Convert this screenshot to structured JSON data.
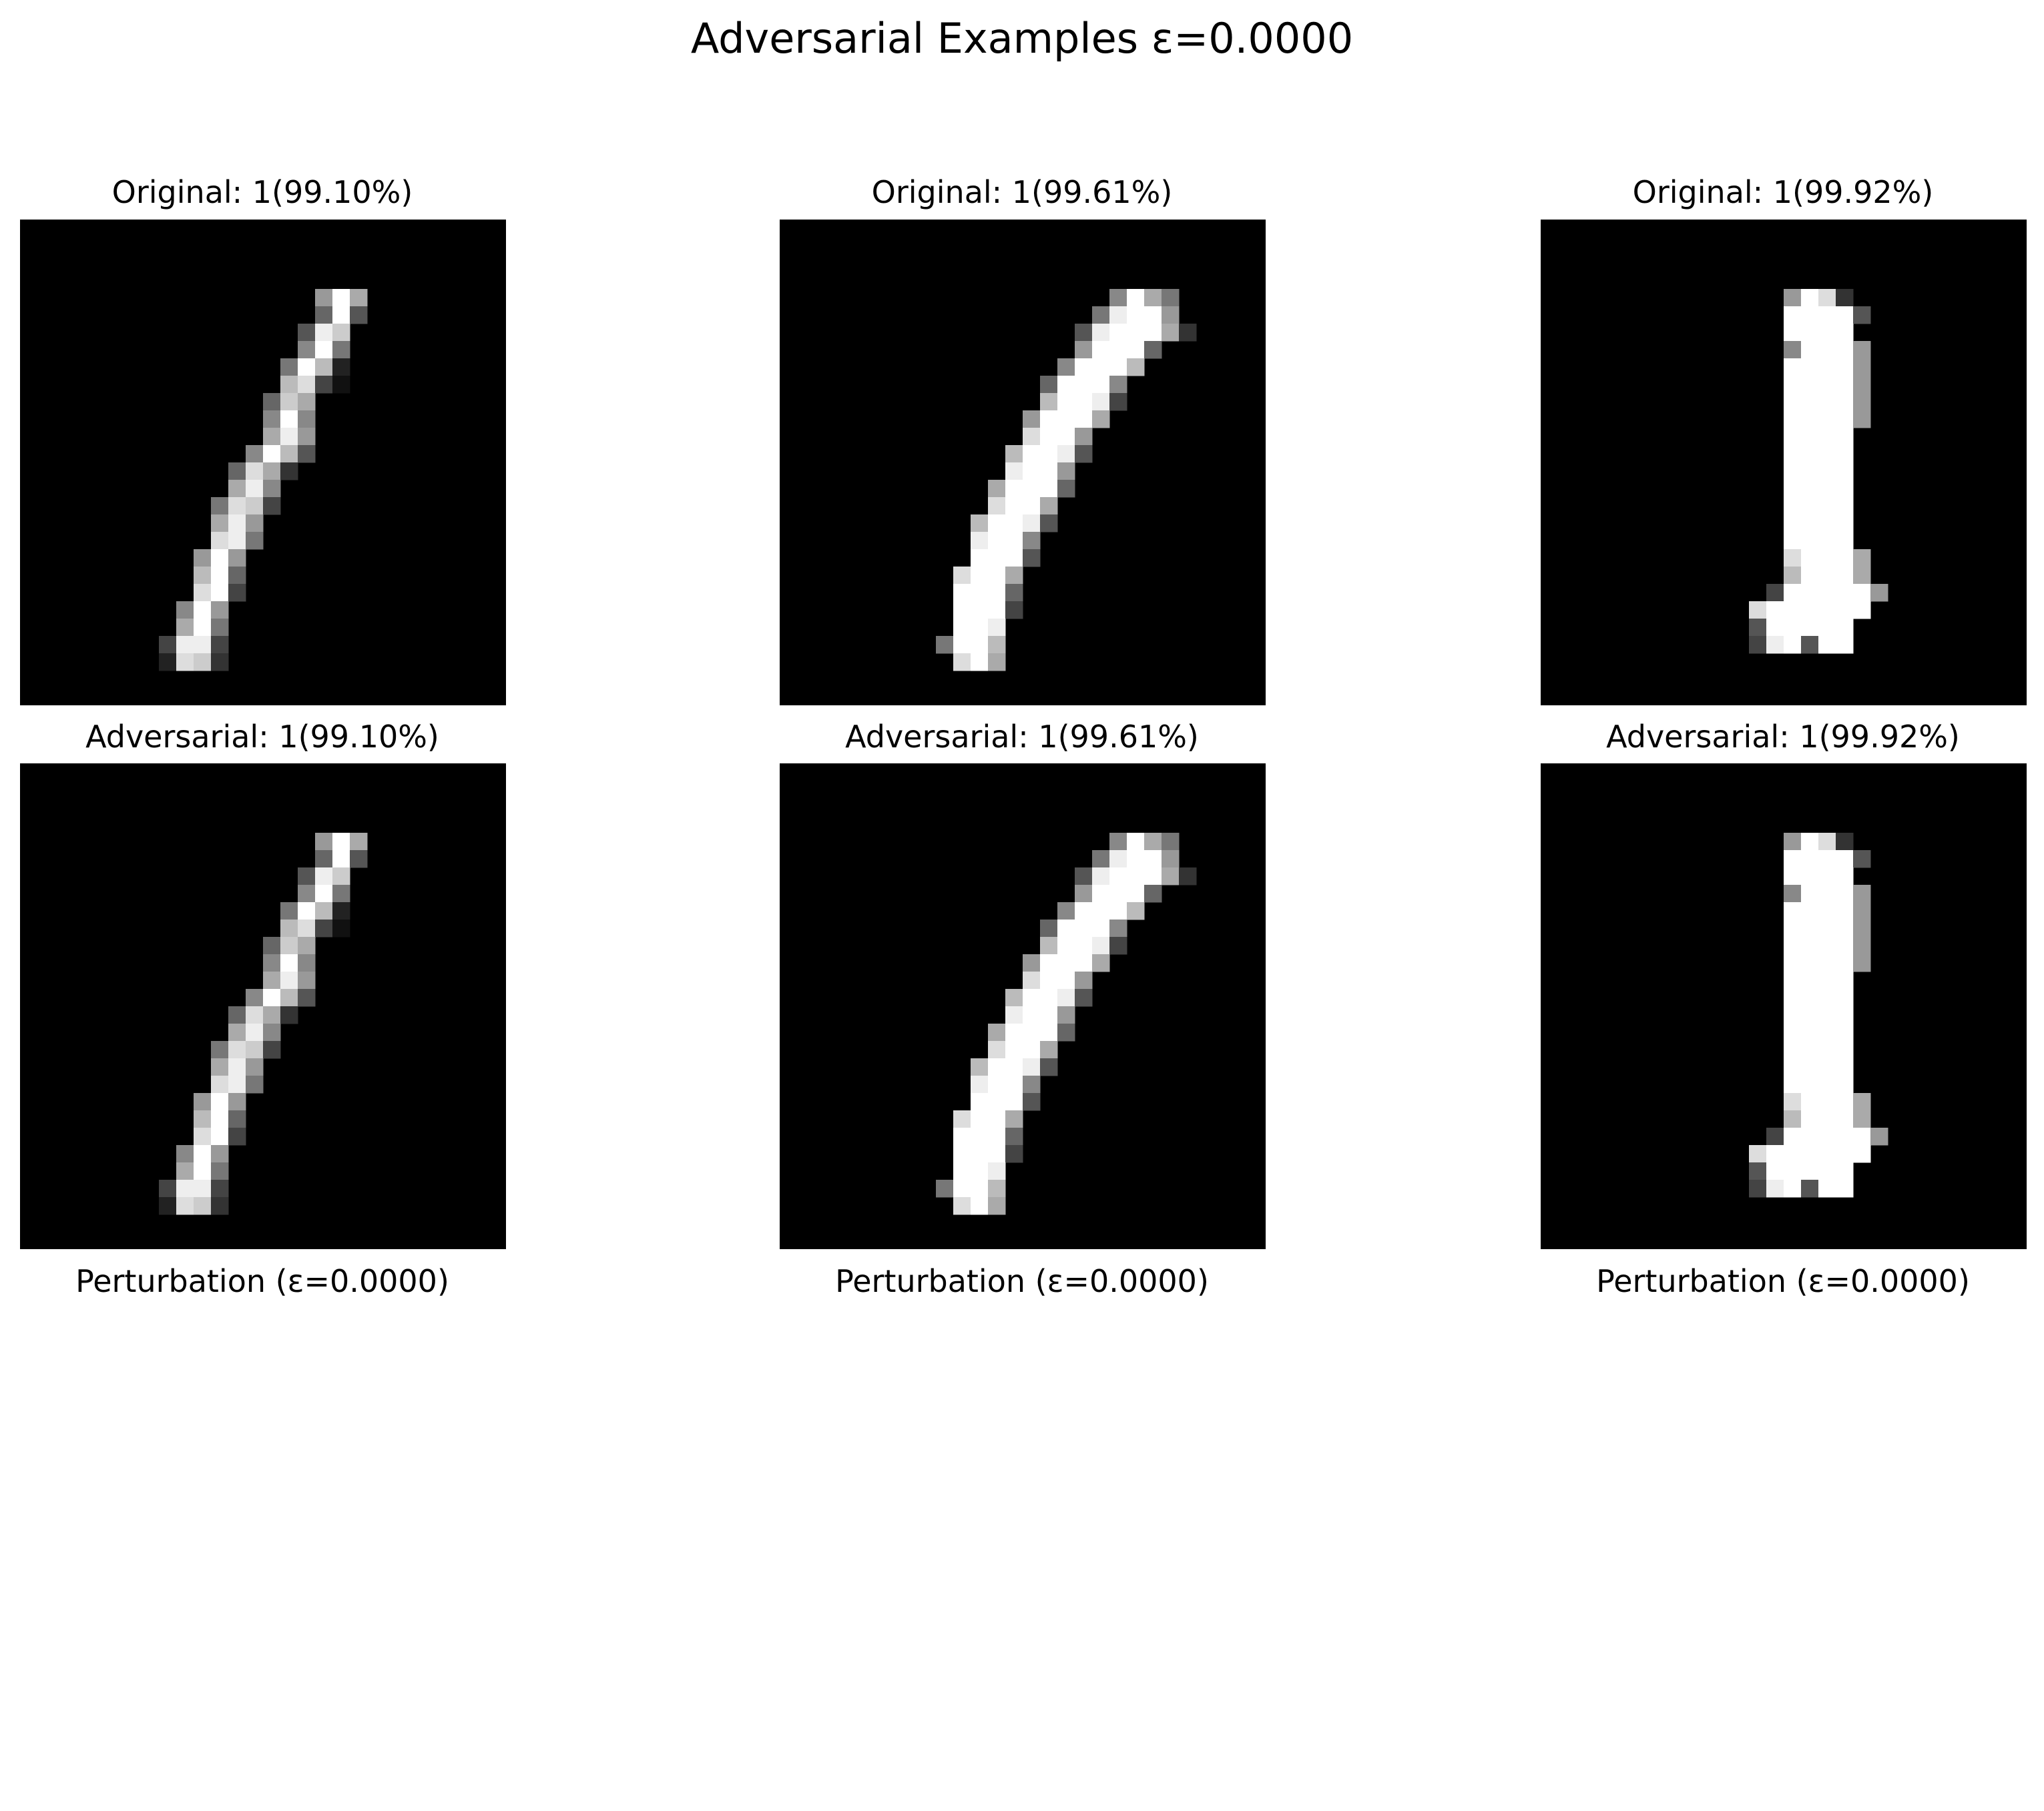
{
  "figure": {
    "title": "Adversarial Examples ε=0.0000"
  },
  "columns": [
    {
      "original_title": "Original: 1(99.10%)",
      "adversarial_title": "Adversarial: 1(99.10%)",
      "perturbation_title": "Perturbation (ε=0.0000)",
      "image_rows": [
        "............................",
        "............................",
        "............................",
        "............................",
        ".................9fa........",
        ".................6f5........",
        "................5ec.........",
        "................8f7.........",
        "...............7fb2.........",
        "...............bd41.........",
        "..............6ca...........",
        "..............8f8...........",
        "..............ae9...........",
        ".............8fb5...........",
        "............6da3............",
        "............ae8.............",
        "...........7dc4.............",
        "...........ae9..............",
        "...........de7..............",
        "..........9f9...............",
        "..........bf6...............",
        "..........df4...............",
        ".........8f9................",
        ".........af7................",
        "........4ee4................",
        "........2dc3................",
        "............................",
        "............................"
      ]
    },
    {
      "original_title": "Original: 1(99.61%)",
      "adversarial_title": "Adversarial: 1(99.61%)",
      "perturbation_title": "Perturbation (ε=0.0000)",
      "image_rows": [
        "............................",
        "............................",
        "............................",
        "............................",
        "...................8fa7.....",
        "..................7eff9.....",
        ".................5efffa3....",
        ".................9fff6......",
        "................8fffb.......",
        "...............6fff8........",
        "...............bffe4........",
        "..............9fffa.........",
        "..............dff9..........",
        ".............bffe5..........",
        ".............eff9...........",
        "............afff6...........",
        "............dffa............",
        "...........bffe5............",
        "...........eff8.............",
        "...........fff5.............",
        "..........dffa..............",
        "..........fff6..............",
        "..........fff4..............",
        "..........ffe...............",
        ".........7ffb...............",
        "..........dfa...............",
        "............................",
        "............................"
      ]
    },
    {
      "original_title": "Original: 1(99.92%)",
      "adversarial_title": "Adversarial: 1(99.92%)",
      "perturbation_title": "Perturbation (ε=0.0000)",
      "image_rows": [
        "............................",
        "............................",
        "............................",
        "............................",
        "..............9fd3..........",
        "..............ffff5.........",
        "..............ffff..........",
        "..............8fff9.........",
        "..............ffff9.........",
        "..............ffff9.........",
        "..............ffff9.........",
        "..............ffff9.........",
        "..............ffff..........",
        "..............ffff..........",
        "..............ffff..........",
        "..............ffff..........",
        "..............ffff..........",
        "..............ffff..........",
        "..............ffff..........",
        "..............dfffa.........",
        "..............bfffa.........",
        ".............4fffff9........",
        "............dffffff.........",
        "............5fffff..........",
        "............4ef5ff..........",
        "............................",
        "............................",
        "............................"
      ]
    }
  ]
}
